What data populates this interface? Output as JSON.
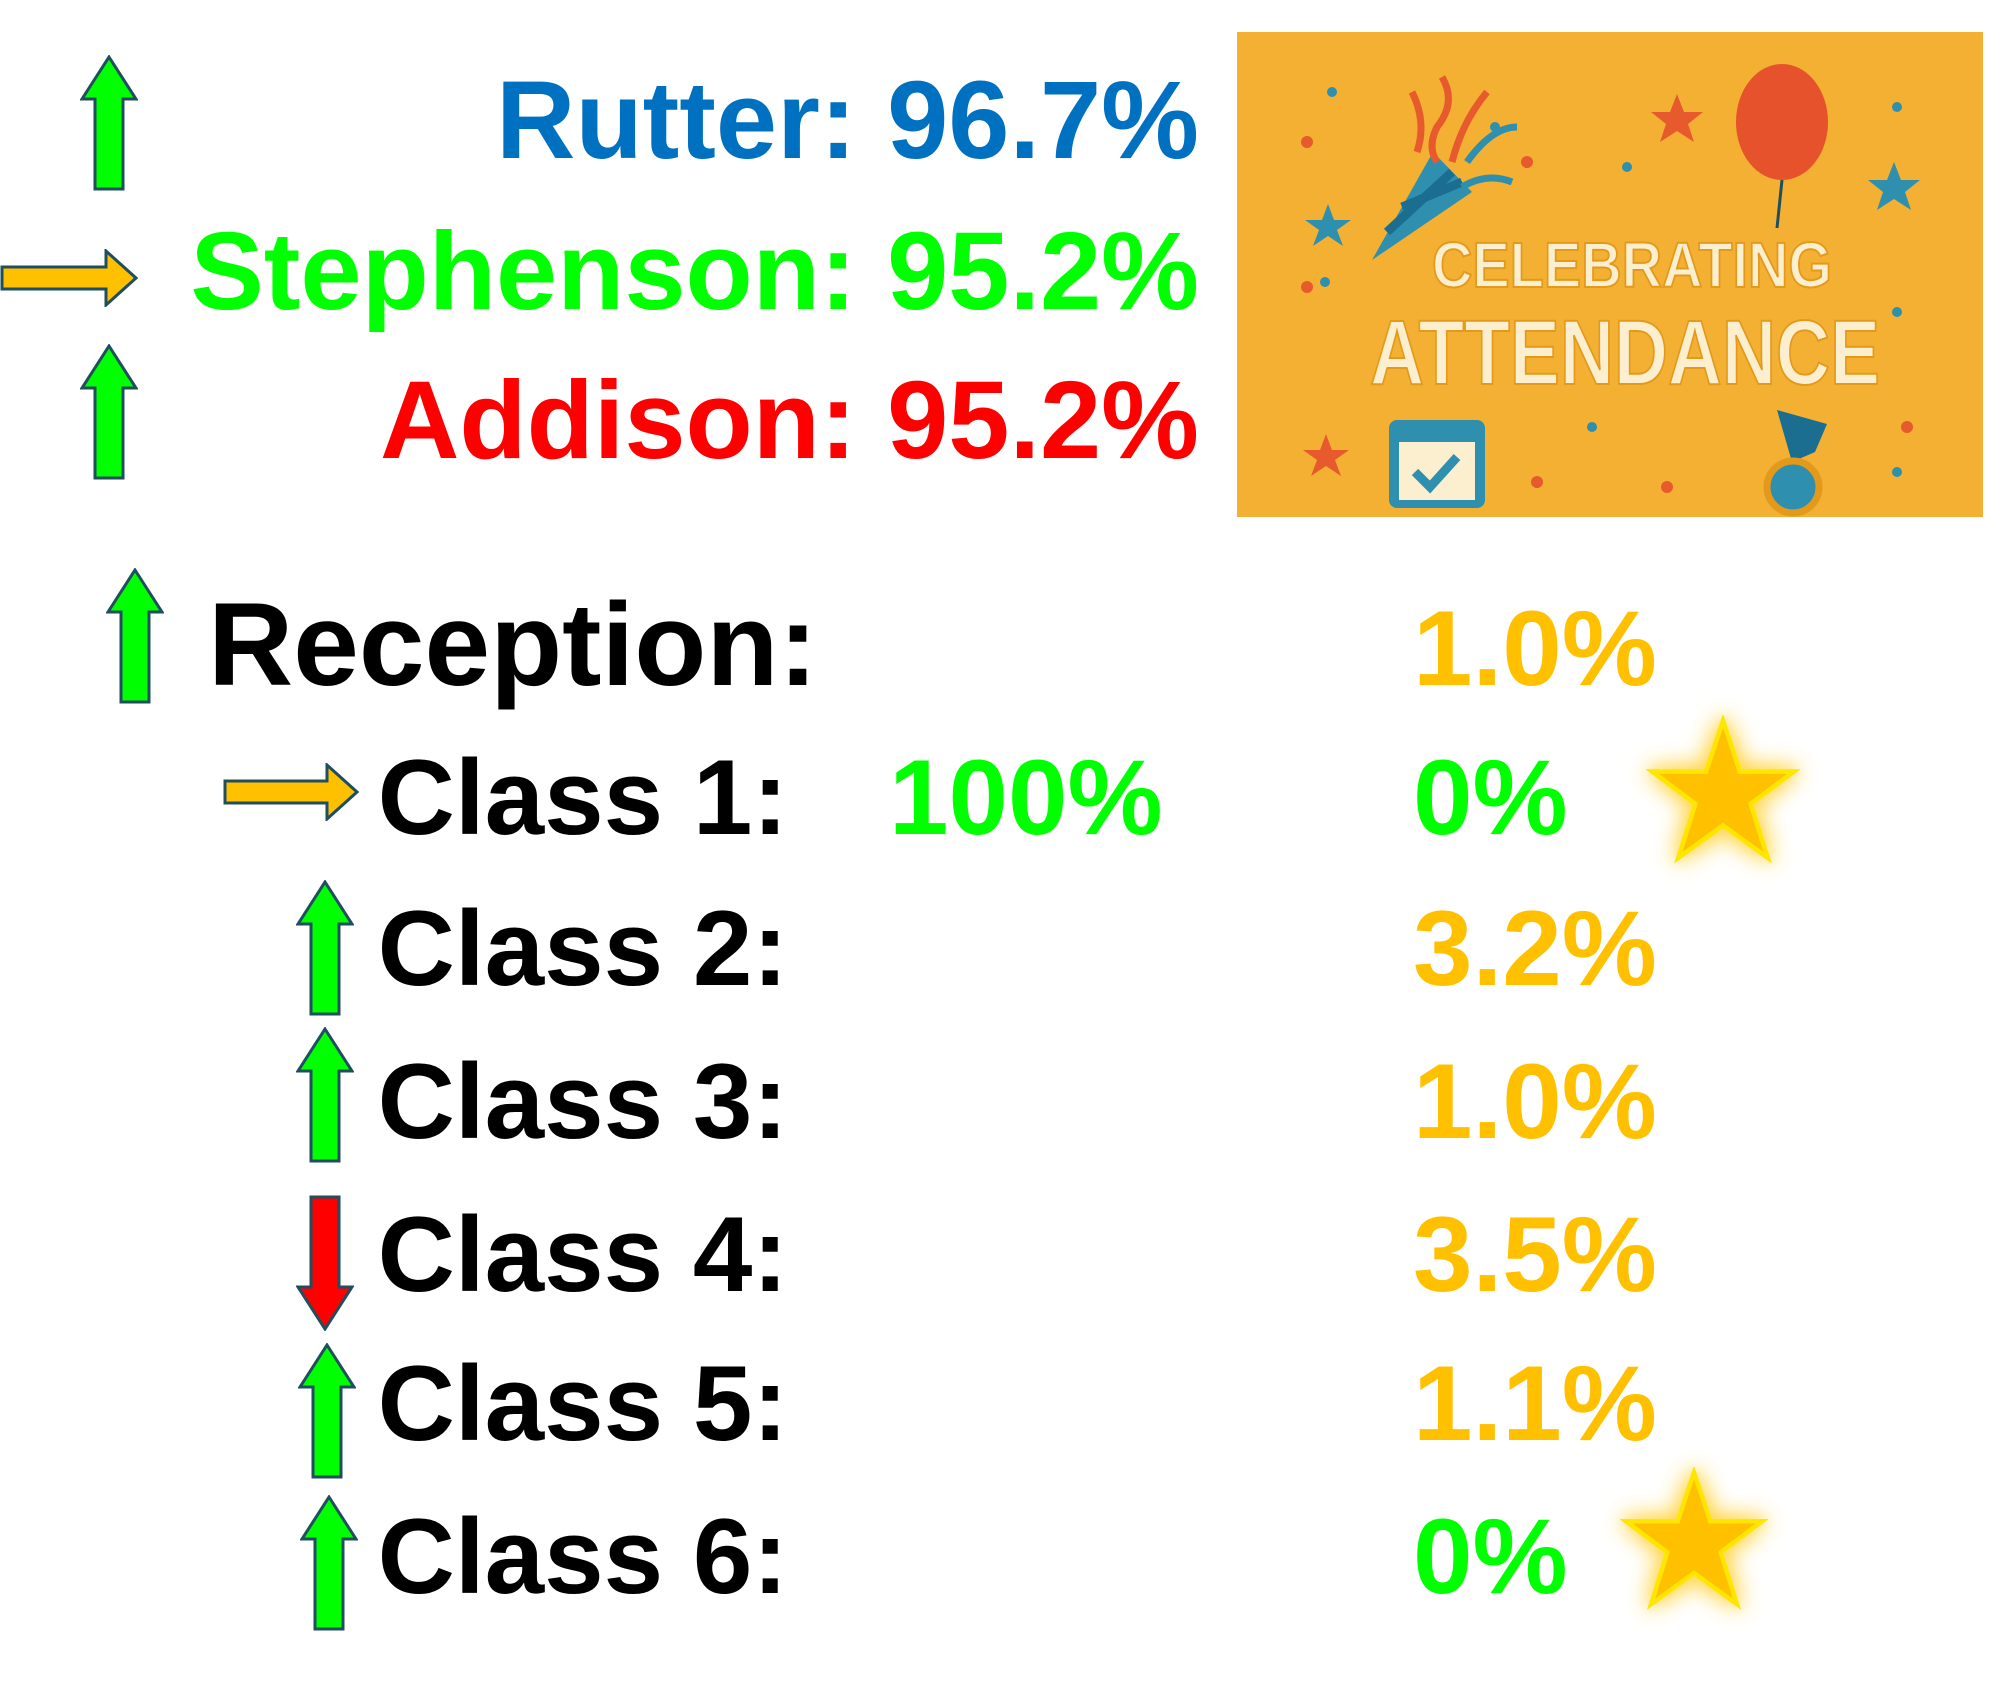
{
  "houses": [
    {
      "name": "Rutter:",
      "value": "96.7%",
      "color": "#0070C0",
      "trend": "up"
    },
    {
      "name": "Stephenson:",
      "value": "95.2%",
      "color": "#00FF00",
      "trend": "same"
    },
    {
      "name": "Addison:",
      "value": "95.2%",
      "color": "#FF0000",
      "trend": "up"
    }
  ],
  "banner": {
    "line1": "CELEBRATING",
    "line2": "ATTENDANCE",
    "background": "#F4B032"
  },
  "reception": {
    "label": "Reception:",
    "value": "1.0%",
    "value_color": "#FFC000",
    "trend": "up"
  },
  "classes": [
    {
      "label": "Class 1:",
      "extra": "100%",
      "value": "0%",
      "value_color": "#00FF00",
      "trend": "same",
      "star": true
    },
    {
      "label": "Class 2:",
      "value": "3.2%",
      "value_color": "#FFC000",
      "trend": "up"
    },
    {
      "label": "Class 3:",
      "value": "1.0%",
      "value_color": "#FFC000",
      "trend": "up"
    },
    {
      "label": "Class 4:",
      "value": "3.5%",
      "value_color": "#FFC000",
      "trend": "down"
    },
    {
      "label": "Class 5:",
      "value": "1.1%",
      "value_color": "#FFC000",
      "trend": "up"
    },
    {
      "label": "Class 6:",
      "value": "0%",
      "value_color": "#00FF00",
      "trend": "up",
      "star": true
    }
  ],
  "colors": {
    "up_arrow": "#00FF00",
    "down_arrow": "#FF0000",
    "same_arrow": "#FFC000",
    "arrow_outline": "#1F4E5F",
    "star": "#FFC000"
  }
}
